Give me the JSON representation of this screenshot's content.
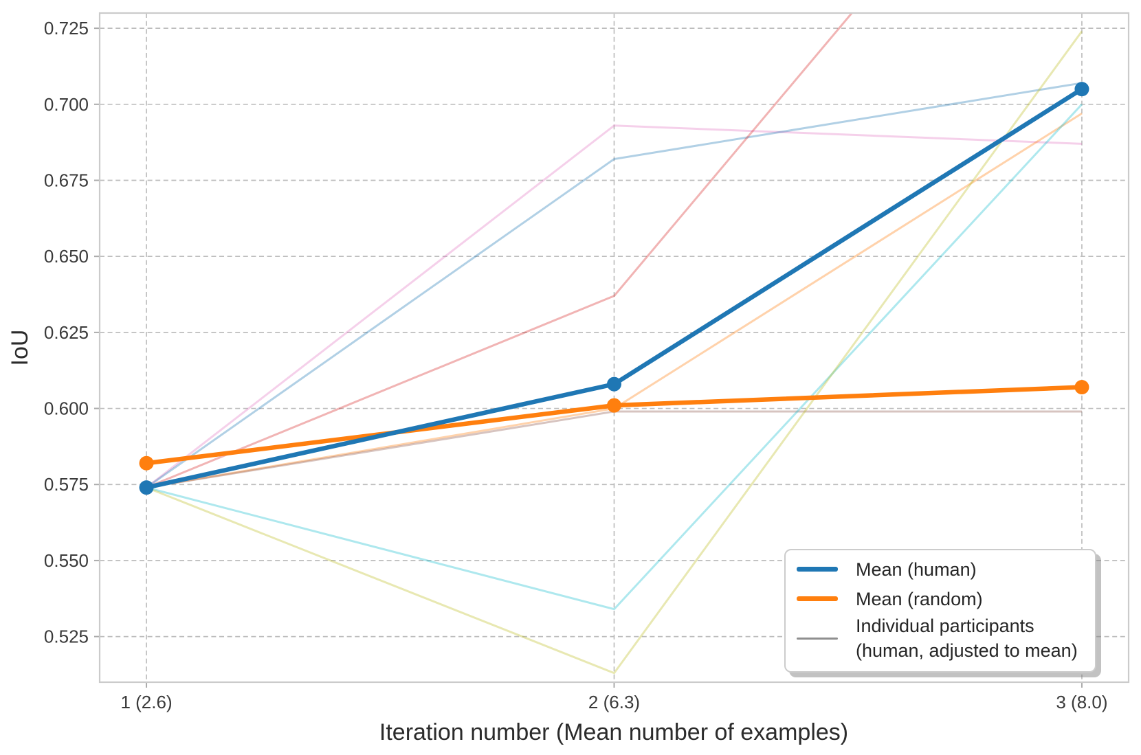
{
  "chart_data": {
    "type": "line",
    "title": "",
    "xlabel": "Iteration number (Mean number of examples)",
    "ylabel": "IoU",
    "x_values": [
      1,
      2,
      3
    ],
    "x_tick_labels": [
      "1 (2.6)",
      "2 (6.3)",
      "3 (8.0)"
    ],
    "y_ticks": [
      0.525,
      0.55,
      0.575,
      0.6,
      0.625,
      0.65,
      0.675,
      0.7,
      0.725
    ],
    "y_tick_labels": [
      "0.525",
      "0.550",
      "0.575",
      "0.600",
      "0.625",
      "0.650",
      "0.675",
      "0.700",
      "0.725"
    ],
    "xlim": [
      0.9,
      3.1
    ],
    "ylim": [
      0.51,
      0.73
    ],
    "grid": {
      "visible": true,
      "style": "dashed",
      "color": "#bdbdbd",
      "axes": "both"
    },
    "individual_line_alpha": 0.35,
    "series": [
      {
        "name": "Mean (human)",
        "role": "mean",
        "color": "#1f77b4",
        "marker": "circle",
        "values": [
          0.574,
          0.608,
          0.705
        ]
      },
      {
        "name": "Mean (random)",
        "role": "mean",
        "color": "#ff7f0e",
        "marker": "circle",
        "values": [
          0.582,
          0.601,
          0.607
        ]
      },
      {
        "name": "individual-1",
        "role": "individual",
        "color": "#e377c2",
        "values": [
          0.574,
          0.693,
          0.687
        ]
      },
      {
        "name": "individual-2",
        "role": "individual",
        "color": "#1f77b4",
        "values": [
          0.574,
          0.682,
          0.707
        ]
      },
      {
        "name": "individual-3",
        "role": "individual",
        "color": "#d62728",
        "values": [
          0.574,
          0.637,
          0.82
        ]
      },
      {
        "name": "individual-4",
        "role": "individual",
        "color": "#ff7f0e",
        "values": [
          0.574,
          0.6,
          0.697
        ]
      },
      {
        "name": "individual-5",
        "role": "individual",
        "color": "#8c564b",
        "values": [
          0.574,
          0.599,
          0.599
        ]
      },
      {
        "name": "individual-6",
        "role": "individual",
        "color": "#17becf",
        "values": [
          0.574,
          0.534,
          0.7
        ]
      },
      {
        "name": "individual-7",
        "role": "individual",
        "color": "#bcbd22",
        "values": [
          0.574,
          0.513,
          0.724
        ]
      }
    ],
    "legend": {
      "position": "lower right",
      "entries": [
        {
          "label_lines": [
            "Mean (human)"
          ],
          "swatch_color": "#1f77b4",
          "swatch_weight": "thick"
        },
        {
          "label_lines": [
            "Mean (random)"
          ],
          "swatch_color": "#ff7f0e",
          "swatch_weight": "thick"
        },
        {
          "label_lines": [
            "Individual participants",
            "(human, adjusted to mean)"
          ],
          "swatch_color": "#8f8f8f",
          "swatch_weight": "thin"
        }
      ]
    }
  }
}
